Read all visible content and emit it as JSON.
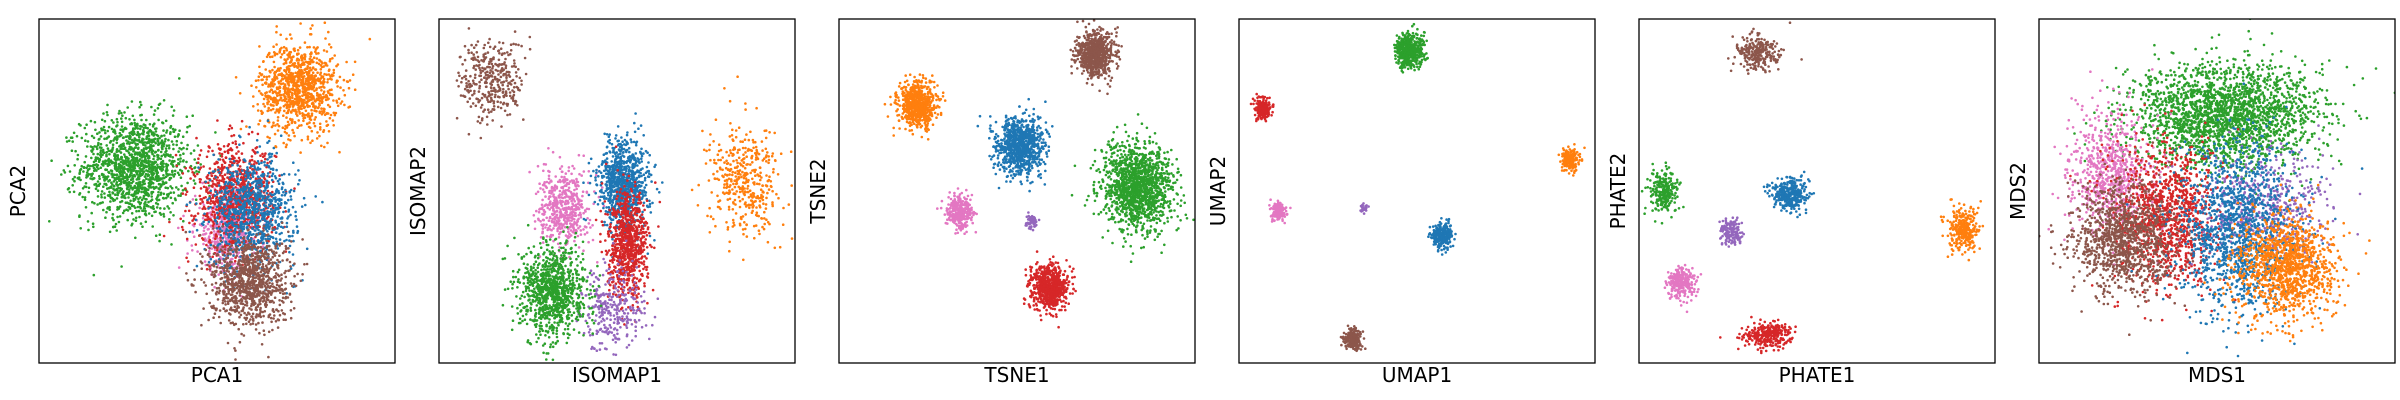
{
  "colors": {
    "blue": "#1f77b4",
    "orange": "#ff7f0e",
    "green": "#2ca02c",
    "red": "#d62728",
    "purple": "#9467bd",
    "brown": "#8c564b",
    "pink": "#e377c2"
  },
  "chart_data": [
    {
      "type": "scatter",
      "xlabel": "PCA1",
      "ylabel": "PCA2",
      "xlim": [
        0,
        100
      ],
      "ylim": [
        0,
        100
      ],
      "grid": false,
      "legend": "none",
      "clusters": [
        {
          "color": "green",
          "x": 27,
          "y": 57,
          "sx": 7.5,
          "sy": 7.5,
          "n": 1400
        },
        {
          "color": "orange",
          "x": 73,
          "y": 80,
          "sx": 5.5,
          "sy": 6.5,
          "n": 1000
        },
        {
          "color": "pink",
          "x": 53,
          "y": 38,
          "sx": 4.5,
          "sy": 6.0,
          "n": 500
        },
        {
          "color": "red",
          "x": 55,
          "y": 48,
          "sx": 5.5,
          "sy": 7.5,
          "n": 900
        },
        {
          "color": "blue",
          "x": 60,
          "y": 44,
          "sx": 6.0,
          "sy": 8.0,
          "n": 900
        },
        {
          "color": "brown",
          "x": 59,
          "y": 24,
          "sx": 5.5,
          "sy": 6.5,
          "n": 1000
        }
      ]
    },
    {
      "type": "scatter",
      "xlabel": "ISOMAP1",
      "ylabel": "ISOMAP2",
      "xlim": [
        0,
        100
      ],
      "ylim": [
        0,
        100
      ],
      "grid": false,
      "legend": "none",
      "clusters": [
        {
          "color": "brown",
          "x": 15,
          "y": 82,
          "sx": 4.5,
          "sy": 6.0,
          "n": 350
        },
        {
          "color": "orange",
          "x": 86,
          "y": 53,
          "sx": 5.0,
          "sy": 8.0,
          "n": 420
        },
        {
          "color": "pink",
          "x": 35,
          "y": 45,
          "sx": 3.5,
          "sy": 5.5,
          "n": 500
        },
        {
          "color": "blue",
          "x": 52,
          "y": 52,
          "sx": 3.5,
          "sy": 6.5,
          "n": 900
        },
        {
          "color": "red",
          "x": 53,
          "y": 34,
          "sx": 2.8,
          "sy": 7.5,
          "n": 800
        },
        {
          "color": "purple",
          "x": 49,
          "y": 16,
          "sx": 4.5,
          "sy": 6.0,
          "n": 300
        },
        {
          "color": "green",
          "x": 32,
          "y": 21,
          "sx": 4.5,
          "sy": 6.5,
          "n": 1000
        }
      ]
    },
    {
      "type": "scatter",
      "xlabel": "TSNE1",
      "ylabel": "TSNE2",
      "xlim": [
        0,
        100
      ],
      "ylim": [
        0,
        100
      ],
      "grid": false,
      "legend": "none",
      "clusters": [
        {
          "color": "brown",
          "x": 72,
          "y": 90,
          "sx": 2.6,
          "sy": 3.2,
          "n": 700
        },
        {
          "color": "orange",
          "x": 22,
          "y": 75,
          "sx": 2.6,
          "sy": 3.2,
          "n": 700
        },
        {
          "color": "blue",
          "x": 51,
          "y": 63,
          "sx": 3.3,
          "sy": 4.2,
          "n": 900
        },
        {
          "color": "green",
          "x": 84,
          "y": 51,
          "sx": 5.0,
          "sy": 6.3,
          "n": 1400
        },
        {
          "color": "pink",
          "x": 34,
          "y": 44,
          "sx": 1.8,
          "sy": 2.2,
          "n": 350
        },
        {
          "color": "purple",
          "x": 54,
          "y": 41,
          "sx": 0.8,
          "sy": 0.9,
          "n": 60
        },
        {
          "color": "red",
          "x": 59,
          "y": 22,
          "sx": 2.6,
          "sy": 3.2,
          "n": 700
        }
      ]
    },
    {
      "type": "scatter",
      "xlabel": "UMAP1",
      "ylabel": "UMAP2",
      "xlim": [
        0,
        100
      ],
      "ylim": [
        0,
        100
      ],
      "grid": false,
      "legend": "none",
      "clusters": [
        {
          "color": "green",
          "x": 48,
          "y": 91,
          "sx": 2.0,
          "sy": 2.5,
          "n": 500
        },
        {
          "color": "red",
          "x": 7,
          "y": 74,
          "sx": 1.2,
          "sy": 1.5,
          "n": 200
        },
        {
          "color": "orange",
          "x": 93,
          "y": 59,
          "sx": 1.2,
          "sy": 1.5,
          "n": 200
        },
        {
          "color": "pink",
          "x": 11,
          "y": 44,
          "sx": 1.0,
          "sy": 1.3,
          "n": 150
        },
        {
          "color": "purple",
          "x": 35,
          "y": 45,
          "sx": 0.5,
          "sy": 0.6,
          "n": 25
        },
        {
          "color": "blue",
          "x": 57,
          "y": 37,
          "sx": 1.5,
          "sy": 1.9,
          "n": 300
        },
        {
          "color": "brown",
          "x": 32,
          "y": 7,
          "sx": 1.2,
          "sy": 1.5,
          "n": 200
        }
      ]
    },
    {
      "type": "scatter",
      "xlabel": "PHATE1",
      "ylabel": "PHATE2",
      "xlim": [
        0,
        100
      ],
      "ylim": [
        0,
        100
      ],
      "grid": false,
      "legend": "none",
      "clusters": [
        {
          "color": "brown",
          "x": 33,
          "y": 90,
          "sx": 3.0,
          "sy": 2.8,
          "n": 250
        },
        {
          "color": "green",
          "x": 7,
          "y": 50,
          "sx": 2.0,
          "sy": 3.0,
          "n": 250
        },
        {
          "color": "blue",
          "x": 42,
          "y": 49,
          "sx": 2.5,
          "sy": 2.3,
          "n": 350
        },
        {
          "color": "orange",
          "x": 91,
          "y": 39,
          "sx": 2.0,
          "sy": 3.2,
          "n": 300
        },
        {
          "color": "purple",
          "x": 26,
          "y": 38,
          "sx": 1.8,
          "sy": 2.0,
          "n": 150
        },
        {
          "color": "pink",
          "x": 12,
          "y": 23,
          "sx": 2.0,
          "sy": 2.3,
          "n": 250
        },
        {
          "color": "red",
          "x": 36,
          "y": 8,
          "sx": 3.2,
          "sy": 1.8,
          "n": 300
        }
      ]
    },
    {
      "type": "scatter",
      "xlabel": "MDS1",
      "ylabel": "MDS2",
      "xlim": [
        0,
        100
      ],
      "ylim": [
        0,
        100
      ],
      "grid": false,
      "legend": "none",
      "clusters": [
        {
          "color": "green",
          "x": 52,
          "y": 72,
          "sx": 13.0,
          "sy": 7.5,
          "n": 2200
        },
        {
          "color": "pink",
          "x": 20,
          "y": 55,
          "sx": 6.0,
          "sy": 9.0,
          "n": 700
        },
        {
          "color": "red",
          "x": 36,
          "y": 43,
          "sx": 7.0,
          "sy": 10.0,
          "n": 1100
        },
        {
          "color": "purple",
          "x": 64,
          "y": 45,
          "sx": 9.0,
          "sy": 8.0,
          "n": 500
        },
        {
          "color": "brown",
          "x": 24,
          "y": 36,
          "sx": 7.0,
          "sy": 8.0,
          "n": 1100
        },
        {
          "color": "blue",
          "x": 56,
          "y": 38,
          "sx": 8.0,
          "sy": 12.0,
          "n": 1300
        },
        {
          "color": "orange",
          "x": 70,
          "y": 28,
          "sx": 7.0,
          "sy": 7.5,
          "n": 1200
        }
      ]
    }
  ]
}
